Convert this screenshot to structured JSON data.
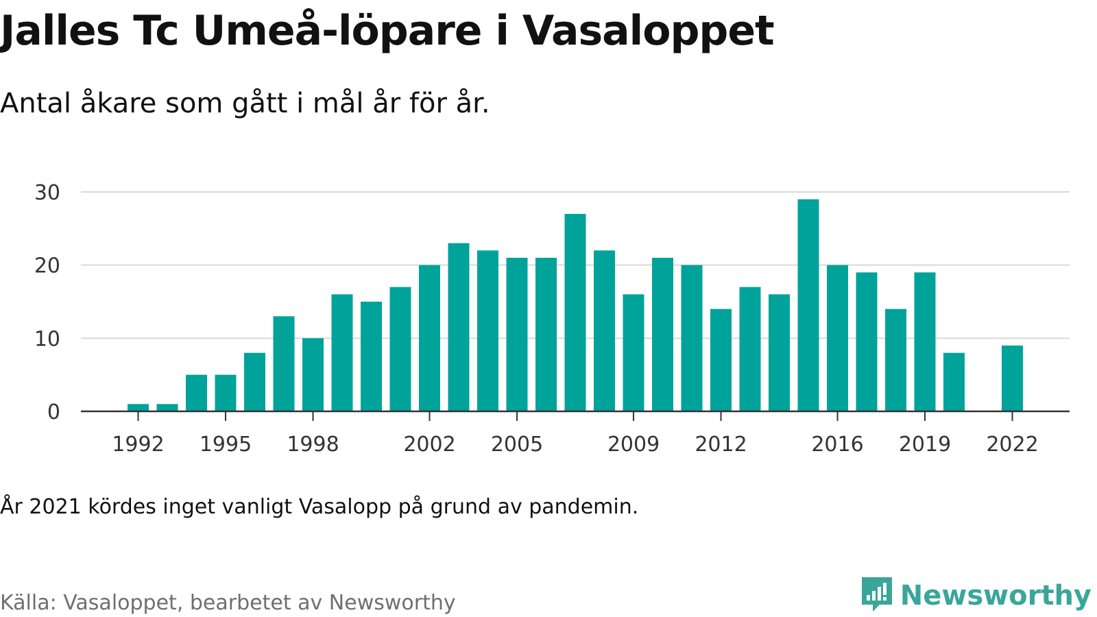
{
  "header": {
    "title": "Jalles Tc Umeå-löpare i Vasaloppet",
    "subtitle": "Antal åkare som gått i mål år för år."
  },
  "footer": {
    "note": "År 2021 kördes inget vanligt Vasalopp på grund av pandemin.",
    "source": "Källa: Vasaloppet, bearbetet av Newsworthy",
    "brand": "Newsworthy",
    "brand_icon": "newsworthy-logo-icon"
  },
  "colors": {
    "bar": "#00a39a",
    "grid": "#d9d9d9",
    "axis": "#333333",
    "brand": "#3aa69a"
  },
  "chart_data": {
    "type": "bar",
    "title": "Jalles Tc Umeå-löpare i Vasaloppet",
    "subtitle": "Antal åkare som gått i mål år för år.",
    "xlabel": "",
    "ylabel": "",
    "ylim": [
      0,
      30
    ],
    "yticks": [
      0,
      10,
      20,
      30
    ],
    "xticks": [
      1992,
      1995,
      1998,
      2002,
      2005,
      2009,
      2012,
      2016,
      2019,
      2022
    ],
    "grid": true,
    "legend": "none",
    "categories": [
      1992,
      1993,
      1994,
      1995,
      1996,
      1997,
      1998,
      1999,
      2000,
      2001,
      2002,
      2003,
      2004,
      2005,
      2006,
      2007,
      2008,
      2009,
      2010,
      2011,
      2012,
      2013,
      2014,
      2015,
      2016,
      2017,
      2018,
      2019,
      2020,
      2021,
      2022
    ],
    "values": [
      1,
      1,
      5,
      5,
      8,
      13,
      10,
      16,
      15,
      17,
      20,
      23,
      22,
      21,
      21,
      27,
      22,
      16,
      21,
      20,
      14,
      17,
      16,
      29,
      20,
      19,
      14,
      19,
      8,
      null,
      9
    ]
  }
}
